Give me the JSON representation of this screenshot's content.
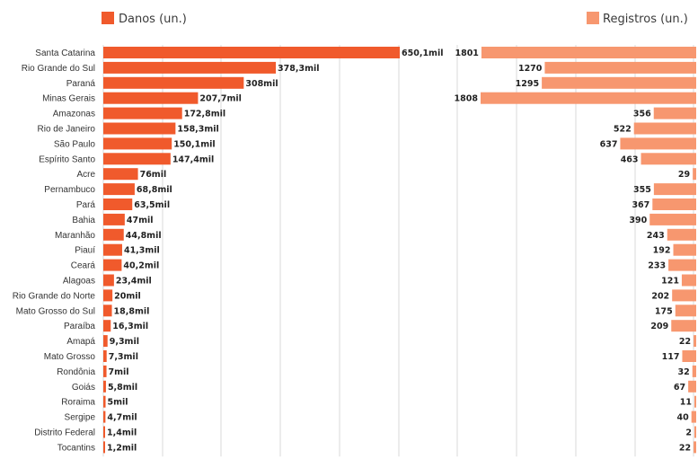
{
  "legend": {
    "danos_label": "Danos (un.)",
    "registros_label": "Registros (un.)"
  },
  "colors": {
    "danos": "#f05a2c",
    "registros": "#f7976f",
    "grid": "#d9d9d9"
  },
  "chart_data": {
    "type": "bar",
    "categories": [
      "Santa Catarina",
      "Rio Grande do Sul",
      "Paraná",
      "Minas Gerais",
      "Amazonas",
      "Rio de Janeiro",
      "São Paulo",
      "Espírito Santo",
      "Acre",
      "Pernambuco",
      "Pará",
      "Bahia",
      "Maranhão",
      "Piauí",
      "Ceará",
      "Alagoas",
      "Rio Grande do Norte",
      "Mato Grosso do Sul",
      "Paraíba",
      "Amapá",
      "Mato Grosso",
      "Rondônia",
      "Goiás",
      "Roraima",
      "Sergipe",
      "Distrito Federal",
      "Tocantins"
    ],
    "series": [
      {
        "name": "Danos (un.)",
        "values": [
          650.1,
          378.3,
          308,
          207.7,
          172.8,
          158.3,
          150.1,
          147.4,
          76,
          68.8,
          63.5,
          47,
          44.8,
          41.3,
          40.2,
          23.4,
          20,
          18.8,
          16.3,
          9.3,
          7.3,
          7,
          5.8,
          5,
          4.7,
          1.4,
          1.2
        ],
        "labels": [
          "650,1mil",
          "378,3mil",
          "308mil",
          "207,7mil",
          "172,8mil",
          "158,3mil",
          "150,1mil",
          "147,4mil",
          "76mil",
          "68,8mil",
          "63,5mil",
          "47mil",
          "44,8mil",
          "41,3mil",
          "40,2mil",
          "23,4mil",
          "20mil",
          "18,8mil",
          "16,3mil",
          "9,3mil",
          "7,3mil",
          "7mil",
          "5,8mil",
          "5mil",
          "4,7mil",
          "1,4mil",
          "1,2mil"
        ],
        "xlim": [
          0,
          675
        ]
      },
      {
        "name": "Registros (un.)",
        "values": [
          1801,
          1270,
          1295,
          1808,
          356,
          522,
          637,
          463,
          29,
          355,
          367,
          390,
          243,
          192,
          233,
          121,
          202,
          175,
          209,
          22,
          117,
          32,
          67,
          11,
          40,
          2,
          22
        ],
        "labels": [
          "1801",
          "1270",
          "1295",
          "1808",
          "356",
          "522",
          "637",
          "463",
          "29",
          "355",
          "367",
          "390",
          "243",
          "192",
          "233",
          "121",
          "202",
          "175",
          "209",
          "22",
          "117",
          "32",
          "67",
          "11",
          "40",
          "2",
          "22"
        ],
        "xlim": [
          0,
          1880
        ]
      }
    ],
    "legend_position": "top",
    "grid": true
  }
}
